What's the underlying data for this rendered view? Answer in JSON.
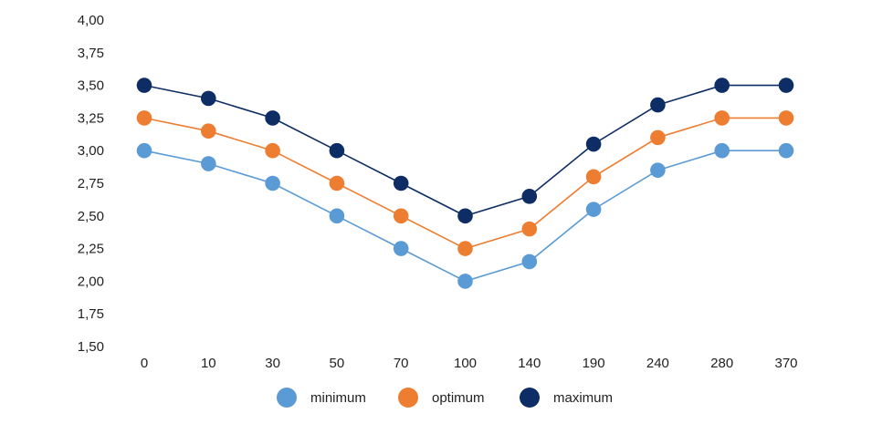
{
  "chart_data": {
    "type": "line",
    "title": "",
    "xlabel": "",
    "ylabel": "",
    "categories": [
      "0",
      "10",
      "30",
      "50",
      "70",
      "100",
      "140",
      "190",
      "240",
      "280",
      "370"
    ],
    "ylim": [
      1.5,
      4.0
    ],
    "y_ticks": [
      "4,00",
      "3,75",
      "3,50",
      "3,25",
      "3,00",
      "2,75",
      "2,50",
      "2,25",
      "2,00",
      "1,75",
      "1,50"
    ],
    "grid": false,
    "legend_position": "bottom",
    "series": [
      {
        "name": "minimum",
        "color": "#5b9bd5",
        "values": [
          3.0,
          2.9,
          2.75,
          2.5,
          2.25,
          2.0,
          2.15,
          2.55,
          2.85,
          3.0,
          3.0
        ]
      },
      {
        "name": "optimum",
        "color": "#ed7d31",
        "values": [
          3.25,
          3.15,
          3.0,
          2.75,
          2.5,
          2.25,
          2.4,
          2.8,
          3.1,
          3.25,
          3.25
        ]
      },
      {
        "name": "maximum",
        "color": "#0e2d64",
        "values": [
          3.5,
          3.4,
          3.25,
          3.0,
          2.75,
          2.5,
          2.65,
          3.05,
          3.35,
          3.5,
          3.5
        ]
      }
    ]
  }
}
